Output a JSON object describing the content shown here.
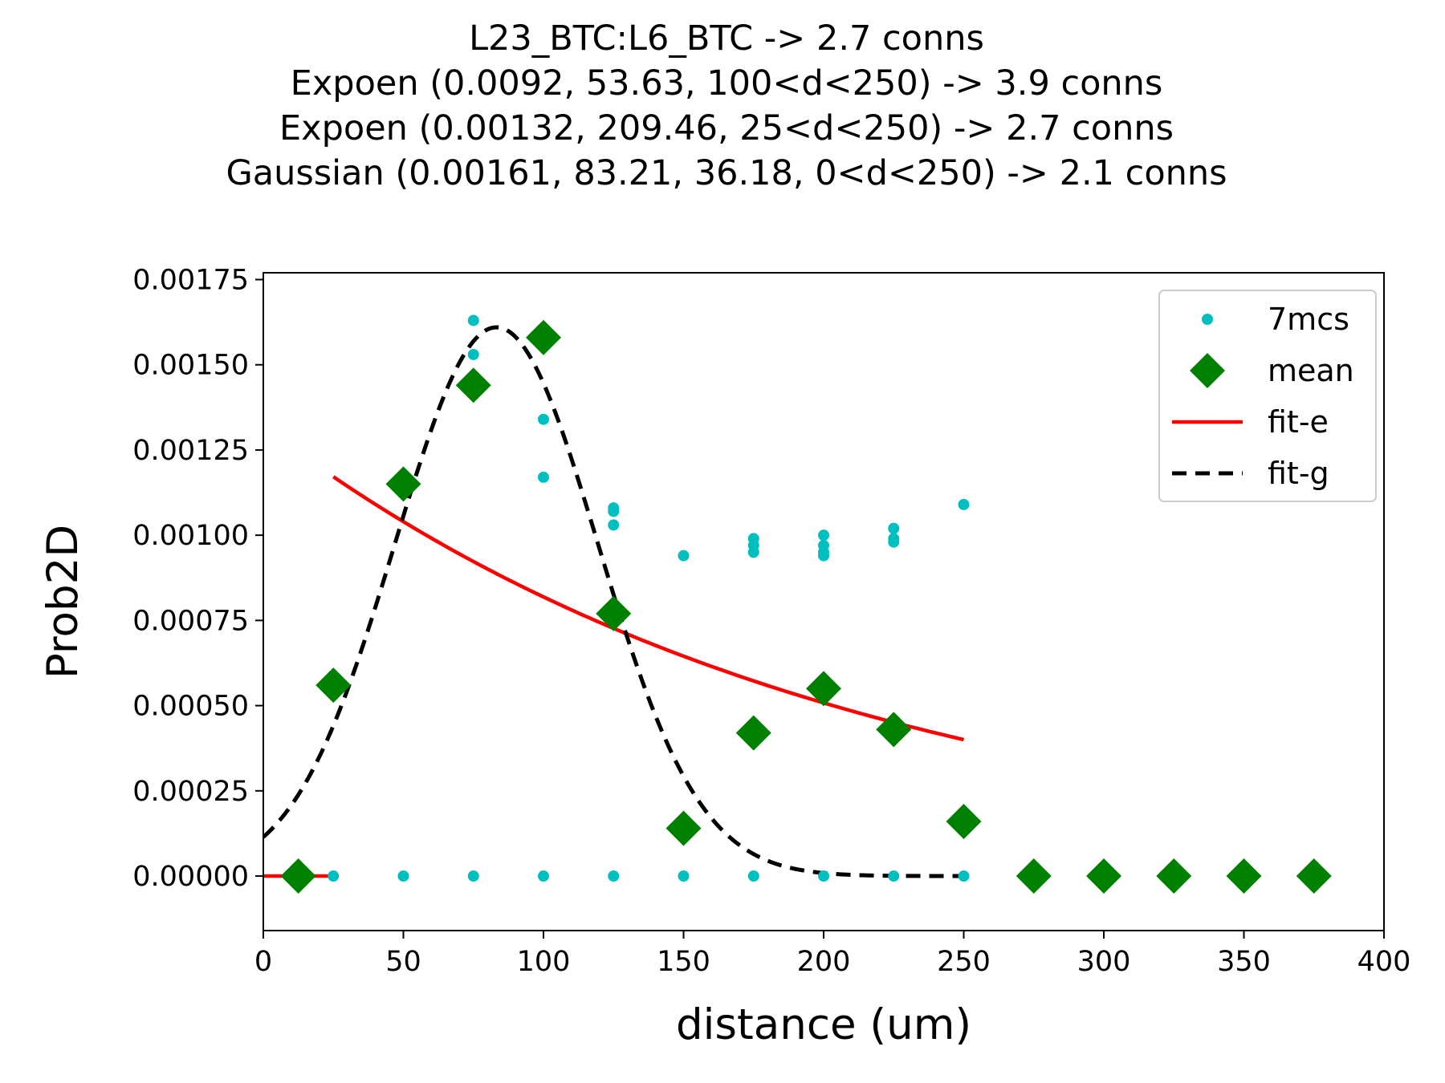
{
  "chart_data": {
    "type": "scatter",
    "title_lines": [
      "L23_BTC:L6_BTC -> 2.7 conns",
      "Expoen (0.0092, 53.63, 100<d<250) -> 3.9 conns",
      "Expoen (0.00132, 209.46, 25<d<250) -> 2.7 conns",
      "Gaussian (0.00161, 83.21, 36.18, 0<d<250) -> 2.1 conns"
    ],
    "xlabel": "distance (um)",
    "ylabel": "Prob2D",
    "xlim": [
      0,
      400
    ],
    "ylim": [
      -0.00016,
      0.00177
    ],
    "xticks": [
      "0",
      "50",
      "100",
      "150",
      "200",
      "250",
      "300",
      "350",
      "400"
    ],
    "yticks": [
      "0.00000",
      "0.00025",
      "0.00050",
      "0.00075",
      "0.00100",
      "0.00125",
      "0.00150",
      "0.00175"
    ],
    "grid": false,
    "legend_position": "top-right",
    "colors": {
      "7mcs": "#00bfbf",
      "mean": "#008000",
      "fit-e": "#ff0000",
      "fit-g": "#000000"
    },
    "series": [
      {
        "name": "7mcs",
        "marker": "dot",
        "x": [
          25,
          50,
          75,
          75,
          75,
          100,
          100,
          100,
          125,
          125,
          125,
          125,
          150,
          150,
          175,
          175,
          175,
          175,
          200,
          200,
          200,
          200,
          200,
          225,
          225,
          225,
          225,
          250,
          250
        ],
        "y": [
          0,
          0,
          0.00163,
          0.00153,
          0,
          0.00134,
          0.00117,
          0,
          0.00108,
          0.00107,
          0.00103,
          0,
          0.00094,
          0,
          0.00099,
          0.00097,
          0.00095,
          0,
          0.001,
          0.00097,
          0.00095,
          0.00094,
          0,
          0.00102,
          0.00099,
          0.00098,
          0,
          0.00109,
          0
        ]
      },
      {
        "name": "mean",
        "marker": "diamond",
        "x": [
          12.5,
          25,
          50,
          75,
          100,
          125,
          150,
          175,
          200,
          225,
          250,
          275,
          300,
          325,
          350,
          375
        ],
        "y": [
          0,
          0.00056,
          0.00115,
          0.00144,
          0.00158,
          0.00077,
          0.00014,
          0.00042,
          0.00055,
          0.00043,
          0.00016,
          0,
          0,
          0,
          0,
          0
        ]
      },
      {
        "name": "fit-e",
        "style": "solid",
        "params": {
          "a": 0.00132,
          "lambda": 209.46,
          "xmin": 25,
          "xmax": 250
        },
        "flat_segment": {
          "x": [
            0,
            25
          ],
          "y": [
            0,
            0
          ]
        }
      },
      {
        "name": "fit-g",
        "style": "dashed",
        "params": {
          "a": 0.00161,
          "mu": 83.21,
          "sigma": 36.18,
          "xmin": 0,
          "xmax": 250
        }
      }
    ]
  }
}
